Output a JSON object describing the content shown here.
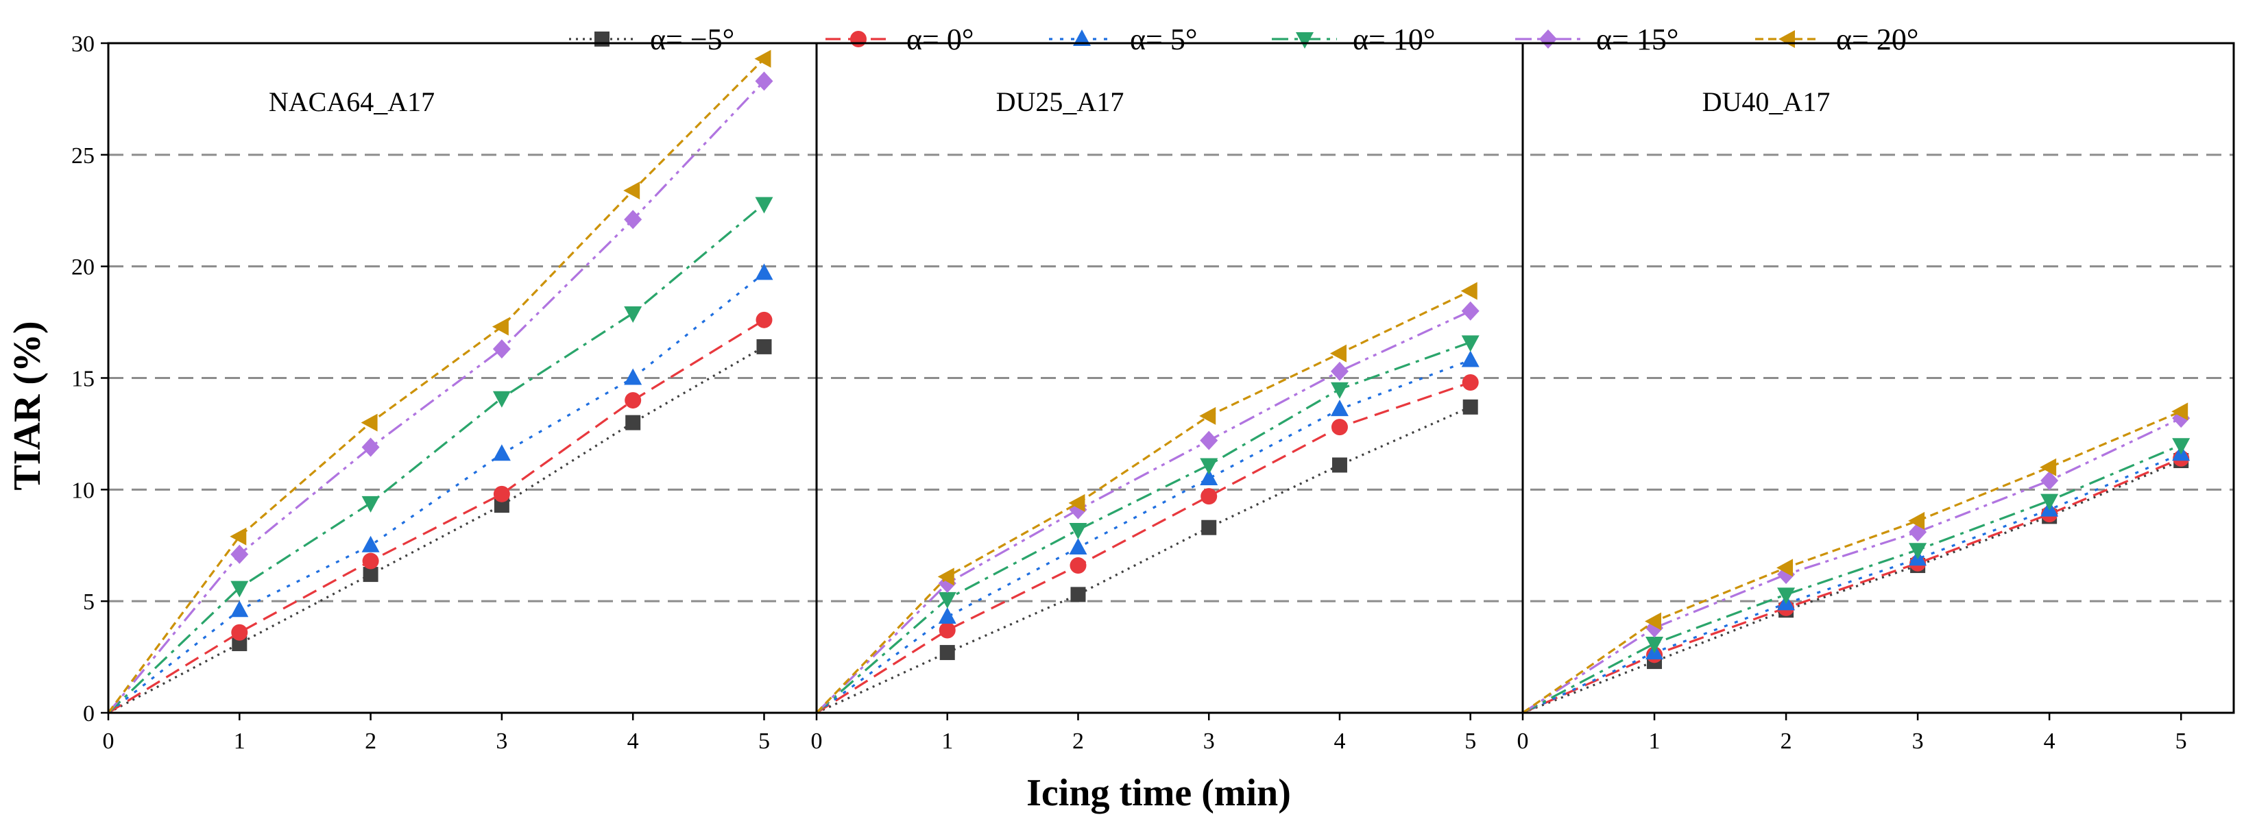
{
  "chart_data": {
    "type": "line",
    "xlabel": "Icing time (min)",
    "ylabel": "TIAR (%)",
    "x": [
      0,
      1,
      2,
      3,
      4,
      5
    ],
    "xlim": [
      0,
      5.4
    ],
    "ylim": [
      0,
      30
    ],
    "x_ticks": [
      "0",
      "1",
      "2",
      "3",
      "4",
      "5"
    ],
    "y_ticks": [
      "0",
      "5",
      "10",
      "15",
      "20",
      "25",
      "30"
    ],
    "y_tick_values": [
      0,
      5,
      10,
      15,
      20,
      25,
      30
    ],
    "grid": "horizontal dashed",
    "legend_position": "top",
    "legend": [
      {
        "key": "m5",
        "label": "α= −5°",
        "color": "#404040",
        "marker": "square",
        "dash": "dotted"
      },
      {
        "key": "p0",
        "label": "α= 0°",
        "color": "#e8383d",
        "marker": "circle",
        "dash": "dashed"
      },
      {
        "key": "p5",
        "label": "α= 5°",
        "color": "#1f6fe0",
        "marker": "triangle-up",
        "dash": "dot"
      },
      {
        "key": "p10",
        "label": "α= 10°",
        "color": "#2aa56b",
        "marker": "triangle-down",
        "dash": "dashdot"
      },
      {
        "key": "p15",
        "label": "α= 15°",
        "color": "#b074e0",
        "marker": "diamond",
        "dash": "dashdotdot"
      },
      {
        "key": "p20",
        "label": "α= 20°",
        "color": "#cc9208",
        "marker": "triangle-left",
        "dash": "shortdash"
      }
    ],
    "panels": [
      {
        "title": "NACA64_A17",
        "series": [
          {
            "key": "m5",
            "values": [
              0,
              3.1,
              6.2,
              9.3,
              13.0,
              16.4
            ]
          },
          {
            "key": "p0",
            "values": [
              0,
              3.6,
              6.8,
              9.8,
              14.0,
              17.6
            ]
          },
          {
            "key": "p5",
            "values": [
              0,
              4.6,
              7.5,
              11.6,
              15.0,
              19.7
            ]
          },
          {
            "key": "p10",
            "values": [
              0,
              5.6,
              9.4,
              14.1,
              17.9,
              22.8
            ]
          },
          {
            "key": "p15",
            "values": [
              0,
              7.1,
              11.9,
              16.3,
              22.1,
              28.3
            ]
          },
          {
            "key": "p20",
            "values": [
              0,
              7.9,
              13.0,
              17.3,
              23.4,
              29.3
            ]
          }
        ]
      },
      {
        "title": "DU25_A17",
        "series": [
          {
            "key": "m5",
            "values": [
              0,
              2.7,
              5.3,
              8.3,
              11.1,
              13.7
            ]
          },
          {
            "key": "p0",
            "values": [
              0,
              3.7,
              6.6,
              9.7,
              12.8,
              14.8
            ]
          },
          {
            "key": "p5",
            "values": [
              0,
              4.3,
              7.4,
              10.5,
              13.6,
              15.8
            ]
          },
          {
            "key": "p10",
            "values": [
              0,
              5.1,
              8.2,
              11.1,
              14.5,
              16.6
            ]
          },
          {
            "key": "p15",
            "values": [
              0,
              5.8,
              9.1,
              12.2,
              15.3,
              18.0
            ]
          },
          {
            "key": "p20",
            "values": [
              0,
              6.1,
              9.4,
              13.3,
              16.1,
              18.9
            ]
          }
        ]
      },
      {
        "title": "DU40_A17",
        "series": [
          {
            "key": "m5",
            "values": [
              0,
              2.3,
              4.6,
              6.6,
              8.8,
              11.3
            ]
          },
          {
            "key": "p0",
            "values": [
              0,
              2.6,
              4.7,
              6.7,
              8.9,
              11.4
            ]
          },
          {
            "key": "p5",
            "values": [
              0,
              2.7,
              4.9,
              6.9,
              9.1,
              11.6
            ]
          },
          {
            "key": "p10",
            "values": [
              0,
              3.1,
              5.3,
              7.3,
              9.5,
              12.0
            ]
          },
          {
            "key": "p15",
            "values": [
              0,
              3.8,
              6.2,
              8.1,
              10.4,
              13.2
            ]
          },
          {
            "key": "p20",
            "values": [
              0,
              4.1,
              6.5,
              8.6,
              11.0,
              13.5
            ]
          }
        ]
      }
    ]
  }
}
